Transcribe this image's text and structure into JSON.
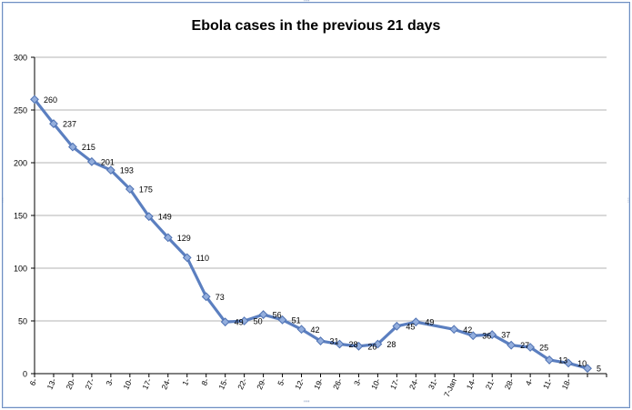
{
  "chart_data": {
    "type": "line",
    "title": "Ebola cases in the previous 21 days",
    "xlabel": "",
    "ylabel": "",
    "ylim": [
      0,
      300
    ],
    "yticks": [
      0,
      50,
      100,
      150,
      200,
      250,
      300
    ],
    "grid": true,
    "legend": "none",
    "categories": [
      "6-",
      "13-",
      "20-",
      "27-",
      "3-",
      "10-",
      "17-",
      "24-",
      "1-",
      "8-",
      "15-",
      "22-",
      "29-",
      "5-",
      "12-",
      "19-",
      "26-",
      "3-",
      "10-",
      "17-",
      "24-",
      "31-",
      "7-Jan",
      "14-",
      "21-",
      "28-",
      "4-",
      "11-",
      "18-"
    ],
    "series": [
      {
        "name": "Ebola cases",
        "color": "#5b7fc0",
        "points": [
          {
            "x": 0,
            "y": 260,
            "label": "260"
          },
          {
            "x": 1,
            "y": 237,
            "label": "237"
          },
          {
            "x": 2,
            "y": 215,
            "label": "215"
          },
          {
            "x": 3,
            "y": 201,
            "label": "201"
          },
          {
            "x": 4,
            "y": 193,
            "label": "193"
          },
          {
            "x": 5,
            "y": 175,
            "label": "175"
          },
          {
            "x": 6,
            "y": 149,
            "label": "149"
          },
          {
            "x": 7,
            "y": 129,
            "label": "129"
          },
          {
            "x": 8,
            "y": 110,
            "label": "110"
          },
          {
            "x": 9,
            "y": 73,
            "label": "73"
          },
          {
            "x": 10,
            "y": 49,
            "label": "49"
          },
          {
            "x": 11,
            "y": 50,
            "label": "50"
          },
          {
            "x": 12,
            "y": 56,
            "label": "56"
          },
          {
            "x": 13,
            "y": 51,
            "label": "51"
          },
          {
            "x": 14,
            "y": 42,
            "label": "42"
          },
          {
            "x": 15,
            "y": 31,
            "label": "31"
          },
          {
            "x": 16,
            "y": 28,
            "label": "28"
          },
          {
            "x": 17,
            "y": 26,
            "label": "26"
          },
          {
            "x": 18,
            "y": 28,
            "label": "28"
          },
          {
            "x": 19,
            "y": 45,
            "label": "45"
          },
          {
            "x": 20,
            "y": 49,
            "label": "49"
          },
          {
            "x": 22,
            "y": 42,
            "label": "42"
          },
          {
            "x": 23,
            "y": 36,
            "label": "36"
          },
          {
            "x": 24,
            "y": 37,
            "label": "37"
          },
          {
            "x": 25,
            "y": 27,
            "label": "27"
          },
          {
            "x": 26,
            "y": 25,
            "label": "25"
          },
          {
            "x": 27,
            "y": 13,
            "label": "13"
          },
          {
            "x": 28,
            "y": 10,
            "label": "10"
          },
          {
            "x": 29,
            "y": 5,
            "label": "5"
          }
        ]
      }
    ]
  },
  "colors": {
    "line": "#5b7fc0",
    "marker_fill": "#93aedd",
    "marker_stroke": "#4f72b3",
    "grid": "#b3b3b3",
    "frame": "#6f8fc2"
  },
  "handle_glyphs": {
    "horizontal": "''''",
    "vertical": "⋮"
  }
}
